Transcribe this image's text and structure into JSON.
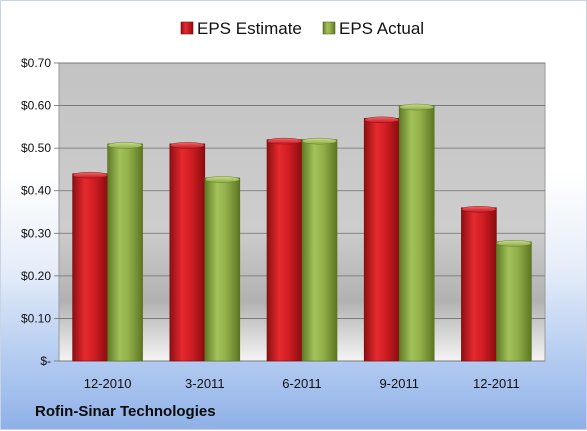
{
  "chart_data": {
    "type": "bar",
    "categories": [
      "12-2010",
      "3-2011",
      "6-2011",
      "9-2011",
      "12-2011"
    ],
    "series": [
      {
        "name": "EPS Estimate",
        "values": [
          0.44,
          0.51,
          0.52,
          0.57,
          0.36
        ]
      },
      {
        "name": "EPS Actual",
        "values": [
          0.51,
          0.43,
          0.52,
          0.6,
          0.28
        ]
      }
    ],
    "yticks": [
      "$-",
      "$0.10",
      "$0.20",
      "$0.30",
      "$0.40",
      "$0.50",
      "$0.60",
      "$0.70"
    ],
    "ylim": [
      0,
      0.7
    ],
    "grid": true,
    "legend_position": "top-center",
    "colors": {
      "estimate": "#c8161d",
      "actual": "#8fac46"
    },
    "footer": "Rofin-Sinar Technologies"
  }
}
